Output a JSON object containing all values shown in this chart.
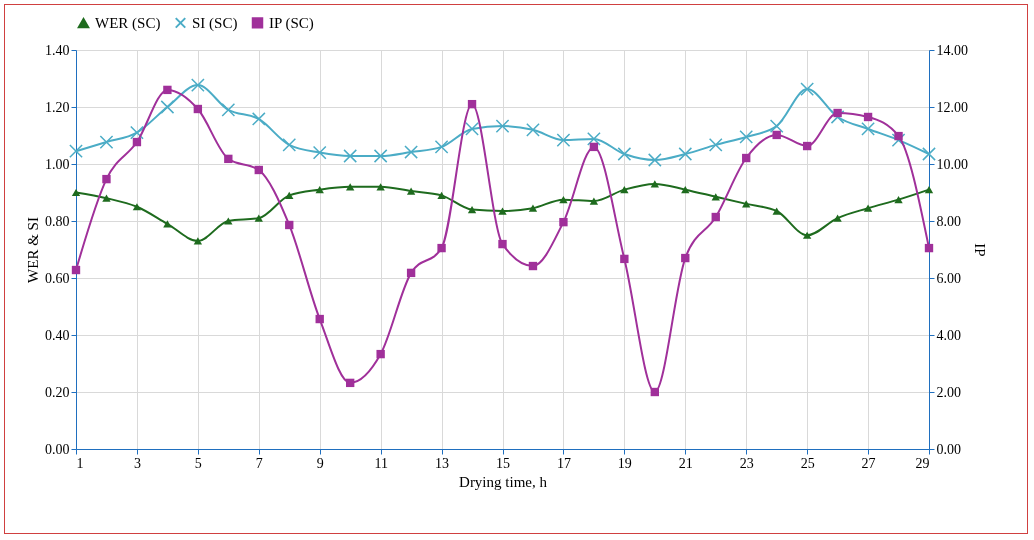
{
  "chart_data": {
    "type": "line",
    "xlabel": "Drying time, h",
    "ylabel": "WER & SI",
    "y2label": "IP",
    "x": [
      1,
      2,
      3,
      4,
      5,
      6,
      7,
      8,
      9,
      10,
      11,
      12,
      13,
      14,
      15,
      16,
      17,
      18,
      19,
      20,
      21,
      22,
      23,
      24,
      25,
      26,
      27,
      28,
      29
    ],
    "series": [
      {
        "name": "WER (SC)",
        "color": "#1e6b1e",
        "marker": "triangle",
        "values": [
          0.9,
          0.88,
          0.85,
          0.79,
          0.73,
          0.8,
          0.81,
          0.89,
          0.91,
          0.92,
          0.92,
          0.905,
          0.89,
          0.84,
          0.835,
          0.845,
          0.875,
          0.87,
          0.91,
          0.93,
          0.91,
          0.885,
          0.86,
          0.835,
          0.75,
          0.81,
          0.845,
          0.875,
          0.91
        ]
      },
      {
        "name": "SI (SC)",
        "color": "#4bacc6",
        "marker": "cross",
        "values": [
          1.045,
          1.077,
          1.11,
          1.2,
          1.277,
          1.19,
          1.158,
          1.067,
          1.04,
          1.028,
          1.028,
          1.042,
          1.06,
          1.123,
          1.133,
          1.12,
          1.084,
          1.088,
          1.035,
          1.014,
          1.035,
          1.067,
          1.095,
          1.133,
          1.263,
          1.165,
          1.123,
          1.084,
          1.035
        ]
      },
      {
        "name": "IP (SC)",
        "color": "#a0309a",
        "marker": "square",
        "axis": "y2",
        "values": [
          6.28,
          9.47,
          10.77,
          12.6,
          11.93,
          10.18,
          9.79,
          7.86,
          4.56,
          2.32,
          3.33,
          6.18,
          7.05,
          12.1,
          7.19,
          6.42,
          7.96,
          10.6,
          6.67,
          2.0,
          6.7,
          8.14,
          10.21,
          11.02,
          10.63,
          11.79,
          11.65,
          10.98,
          7.05
        ]
      }
    ],
    "xlim": [
      1,
      29
    ],
    "xticks": [
      1,
      3,
      5,
      7,
      9,
      11,
      13,
      15,
      17,
      19,
      21,
      23,
      25,
      27,
      29
    ],
    "ylim": [
      0,
      1.4
    ],
    "yticks": [
      {
        "value": 0,
        "label": "0.00"
      },
      {
        "value": 0.2,
        "label": "0.20"
      },
      {
        "value": 0.4,
        "label": "0.40"
      },
      {
        "value": 0.6,
        "label": "0.60"
      },
      {
        "value": 0.8,
        "label": "0.80"
      },
      {
        "value": 1.0,
        "label": "1.00"
      },
      {
        "value": 1.2,
        "label": "1.20"
      },
      {
        "value": 1.4,
        "label": "1.40"
      }
    ],
    "y2lim": [
      0,
      14
    ],
    "y2ticks": [
      {
        "value": 0,
        "label": "0.00"
      },
      {
        "value": 2,
        "label": "2.00"
      },
      {
        "value": 4,
        "label": "4.00"
      },
      {
        "value": 6,
        "label": "6.00"
      },
      {
        "value": 8,
        "label": "8.00"
      },
      {
        "value": 10,
        "label": "10.00"
      },
      {
        "value": 12,
        "label": "12.00"
      },
      {
        "value": 14,
        "label": "14.00"
      }
    ],
    "grid": true,
    "legend": "top",
    "line_style": "solid"
  }
}
